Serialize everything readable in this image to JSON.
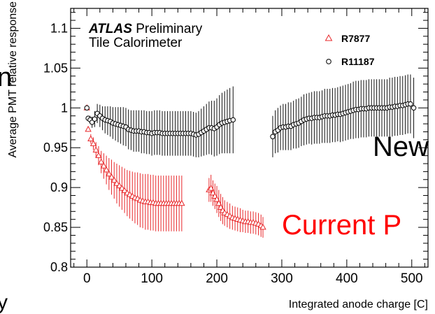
{
  "chart_data": {
    "type": "scatter",
    "header": {
      "experiment": "ATLAS",
      "status": "Preliminary",
      "subtitle": "Tile Calorimeter"
    },
    "xlabel": "Integrated anode charge [C]",
    "ylabel": "Average PMT relative response",
    "xlim": [
      -25,
      525
    ],
    "ylim": [
      0.8,
      1.125
    ],
    "xticks": [
      "0",
      "100",
      "200",
      "300",
      "400",
      "500"
    ],
    "yticks": [
      "0.8",
      "0.85",
      "0.9",
      "0.95",
      "1",
      "1.05",
      "1.1"
    ],
    "legend_position": "top-right",
    "series": [
      {
        "name": "R7877",
        "marker": "triangle",
        "color": "#e8282b",
        "points": [
          [
            0,
            1.0,
            0.0
          ],
          [
            2,
            0.973,
            0.003
          ],
          [
            6,
            0.961,
            0.006
          ],
          [
            10,
            0.955,
            0.008
          ],
          [
            14,
            0.947,
            0.01
          ],
          [
            18,
            0.94,
            0.012
          ],
          [
            22,
            0.932,
            0.014
          ],
          [
            26,
            0.927,
            0.016
          ],
          [
            30,
            0.922,
            0.018
          ],
          [
            34,
            0.917,
            0.02
          ],
          [
            38,
            0.913,
            0.022
          ],
          [
            42,
            0.909,
            0.023
          ],
          [
            46,
            0.905,
            0.025
          ],
          [
            50,
            0.902,
            0.026
          ],
          [
            54,
            0.899,
            0.027
          ],
          [
            58,
            0.896,
            0.028
          ],
          [
            62,
            0.893,
            0.029
          ],
          [
            66,
            0.891,
            0.03
          ],
          [
            70,
            0.889,
            0.031
          ],
          [
            74,
            0.887,
            0.032
          ],
          [
            78,
            0.886,
            0.033
          ],
          [
            82,
            0.884,
            0.034
          ],
          [
            86,
            0.883,
            0.034
          ],
          [
            90,
            0.882,
            0.035
          ],
          [
            94,
            0.882,
            0.035
          ],
          [
            98,
            0.881,
            0.035
          ],
          [
            102,
            0.881,
            0.035
          ],
          [
            106,
            0.88,
            0.035
          ],
          [
            110,
            0.88,
            0.035
          ],
          [
            114,
            0.88,
            0.035
          ],
          [
            118,
            0.88,
            0.035
          ],
          [
            122,
            0.88,
            0.035
          ],
          [
            126,
            0.88,
            0.035
          ],
          [
            130,
            0.88,
            0.035
          ],
          [
            134,
            0.88,
            0.035
          ],
          [
            138,
            0.88,
            0.035
          ],
          [
            142,
            0.88,
            0.035
          ],
          [
            146,
            0.88,
            0.035
          ],
          [
            188,
            0.897,
            0.015
          ],
          [
            191,
            0.899,
            0.017
          ],
          [
            194,
            0.893,
            0.016
          ],
          [
            197,
            0.889,
            0.016
          ],
          [
            200,
            0.885,
            0.017
          ],
          [
            203,
            0.88,
            0.017
          ],
          [
            206,
            0.875,
            0.017
          ],
          [
            209,
            0.871,
            0.017
          ],
          [
            212,
            0.868,
            0.016
          ],
          [
            216,
            0.866,
            0.016
          ],
          [
            220,
            0.864,
            0.016
          ],
          [
            224,
            0.862,
            0.015
          ],
          [
            228,
            0.861,
            0.015
          ],
          [
            232,
            0.86,
            0.015
          ],
          [
            236,
            0.859,
            0.015
          ],
          [
            240,
            0.858,
            0.014
          ],
          [
            244,
            0.857,
            0.014
          ],
          [
            248,
            0.857,
            0.014
          ],
          [
            252,
            0.856,
            0.014
          ],
          [
            256,
            0.856,
            0.014
          ],
          [
            260,
            0.855,
            0.014
          ],
          [
            264,
            0.854,
            0.014
          ],
          [
            268,
            0.852,
            0.014
          ],
          [
            271,
            0.85,
            0.013
          ]
        ]
      },
      {
        "name": "R11187",
        "marker": "circle",
        "color": "#111111",
        "points": [
          [
            0,
            1.0,
            0.0
          ],
          [
            2,
            0.987,
            0.003
          ],
          [
            5,
            0.985,
            0.005
          ],
          [
            8,
            0.982,
            0.007
          ],
          [
            12,
            0.986,
            0.01
          ],
          [
            16,
            0.993,
            0.012
          ],
          [
            20,
            0.99,
            0.014
          ],
          [
            24,
            0.987,
            0.015
          ],
          [
            28,
            0.985,
            0.017
          ],
          [
            32,
            0.984,
            0.018
          ],
          [
            36,
            0.983,
            0.019
          ],
          [
            40,
            0.981,
            0.02
          ],
          [
            44,
            0.98,
            0.021
          ],
          [
            48,
            0.979,
            0.022
          ],
          [
            52,
            0.978,
            0.023
          ],
          [
            56,
            0.977,
            0.024
          ],
          [
            60,
            0.976,
            0.024
          ],
          [
            64,
            0.973,
            0.025
          ],
          [
            68,
            0.972,
            0.025
          ],
          [
            72,
            0.971,
            0.026
          ],
          [
            76,
            0.971,
            0.026
          ],
          [
            80,
            0.971,
            0.026
          ],
          [
            84,
            0.97,
            0.027
          ],
          [
            88,
            0.97,
            0.027
          ],
          [
            92,
            0.969,
            0.027
          ],
          [
            96,
            0.969,
            0.027
          ],
          [
            100,
            0.968,
            0.028
          ],
          [
            104,
            0.969,
            0.028
          ],
          [
            108,
            0.969,
            0.028
          ],
          [
            112,
            0.969,
            0.028
          ],
          [
            116,
            0.968,
            0.028
          ],
          [
            120,
            0.968,
            0.028
          ],
          [
            124,
            0.968,
            0.028
          ],
          [
            128,
            0.968,
            0.028
          ],
          [
            132,
            0.968,
            0.028
          ],
          [
            136,
            0.968,
            0.028
          ],
          [
            140,
            0.968,
            0.028
          ],
          [
            144,
            0.968,
            0.028
          ],
          [
            148,
            0.968,
            0.028
          ],
          [
            152,
            0.968,
            0.028
          ],
          [
            156,
            0.968,
            0.028
          ],
          [
            160,
            0.968,
            0.028
          ],
          [
            164,
            0.967,
            0.028
          ],
          [
            168,
            0.966,
            0.028
          ],
          [
            172,
            0.967,
            0.029
          ],
          [
            176,
            0.969,
            0.03
          ],
          [
            180,
            0.971,
            0.031
          ],
          [
            184,
            0.973,
            0.032
          ],
          [
            188,
            0.975,
            0.033
          ],
          [
            192,
            0.975,
            0.034
          ],
          [
            196,
            0.974,
            0.035
          ],
          [
            200,
            0.976,
            0.036
          ],
          [
            204,
            0.979,
            0.037
          ],
          [
            208,
            0.981,
            0.038
          ],
          [
            212,
            0.982,
            0.039
          ],
          [
            216,
            0.983,
            0.04
          ],
          [
            220,
            0.984,
            0.041
          ],
          [
            225,
            0.985,
            0.042
          ],
          [
            286,
            0.964,
            0.026
          ],
          [
            290,
            0.97,
            0.027
          ],
          [
            294,
            0.972,
            0.028
          ],
          [
            298,
            0.975,
            0.028
          ],
          [
            302,
            0.976,
            0.029
          ],
          [
            306,
            0.976,
            0.029
          ],
          [
            310,
            0.977,
            0.03
          ],
          [
            314,
            0.977,
            0.03
          ],
          [
            318,
            0.979,
            0.03
          ],
          [
            322,
            0.98,
            0.031
          ],
          [
            326,
            0.981,
            0.031
          ],
          [
            330,
            0.983,
            0.031
          ],
          [
            334,
            0.985,
            0.032
          ],
          [
            338,
            0.986,
            0.032
          ],
          [
            342,
            0.987,
            0.032
          ],
          [
            346,
            0.987,
            0.033
          ],
          [
            350,
            0.988,
            0.033
          ],
          [
            354,
            0.988,
            0.033
          ],
          [
            358,
            0.988,
            0.033
          ],
          [
            362,
            0.989,
            0.033
          ],
          [
            366,
            0.99,
            0.034
          ],
          [
            370,
            0.99,
            0.034
          ],
          [
            374,
            0.99,
            0.034
          ],
          [
            378,
            0.991,
            0.034
          ],
          [
            382,
            0.991,
            0.034
          ],
          [
            386,
            0.992,
            0.034
          ],
          [
            390,
            0.992,
            0.035
          ],
          [
            394,
            0.993,
            0.035
          ],
          [
            398,
            0.994,
            0.035
          ],
          [
            402,
            0.995,
            0.035
          ],
          [
            406,
            0.996,
            0.035
          ],
          [
            410,
            0.997,
            0.036
          ],
          [
            414,
            0.998,
            0.036
          ],
          [
            418,
            0.998,
            0.036
          ],
          [
            422,
            0.999,
            0.036
          ],
          [
            426,
            0.999,
            0.036
          ],
          [
            430,
            0.999,
            0.036
          ],
          [
            434,
            1.0,
            0.036
          ],
          [
            438,
            1.0,
            0.036
          ],
          [
            442,
            1.0,
            0.036
          ],
          [
            446,
            1.0,
            0.036
          ],
          [
            450,
            1.0,
            0.036
          ],
          [
            454,
            1.0,
            0.036
          ],
          [
            458,
            1.0,
            0.036
          ],
          [
            462,
            1.0,
            0.036
          ],
          [
            466,
            1.001,
            0.037
          ],
          [
            470,
            1.001,
            0.037
          ],
          [
            474,
            1.002,
            0.037
          ],
          [
            478,
            1.002,
            0.037
          ],
          [
            482,
            1.003,
            0.037
          ],
          [
            486,
            1.003,
            0.037
          ],
          [
            490,
            1.004,
            0.037
          ],
          [
            494,
            1.005,
            0.037
          ],
          [
            498,
            1.005,
            0.037
          ],
          [
            503,
            1.0,
            0.038
          ]
        ]
      }
    ]
  },
  "overlay": {
    "left_fragment_1": "n",
    "left_fragment_2": "y",
    "right_label_new": "New",
    "right_label_current": "Current P"
  }
}
